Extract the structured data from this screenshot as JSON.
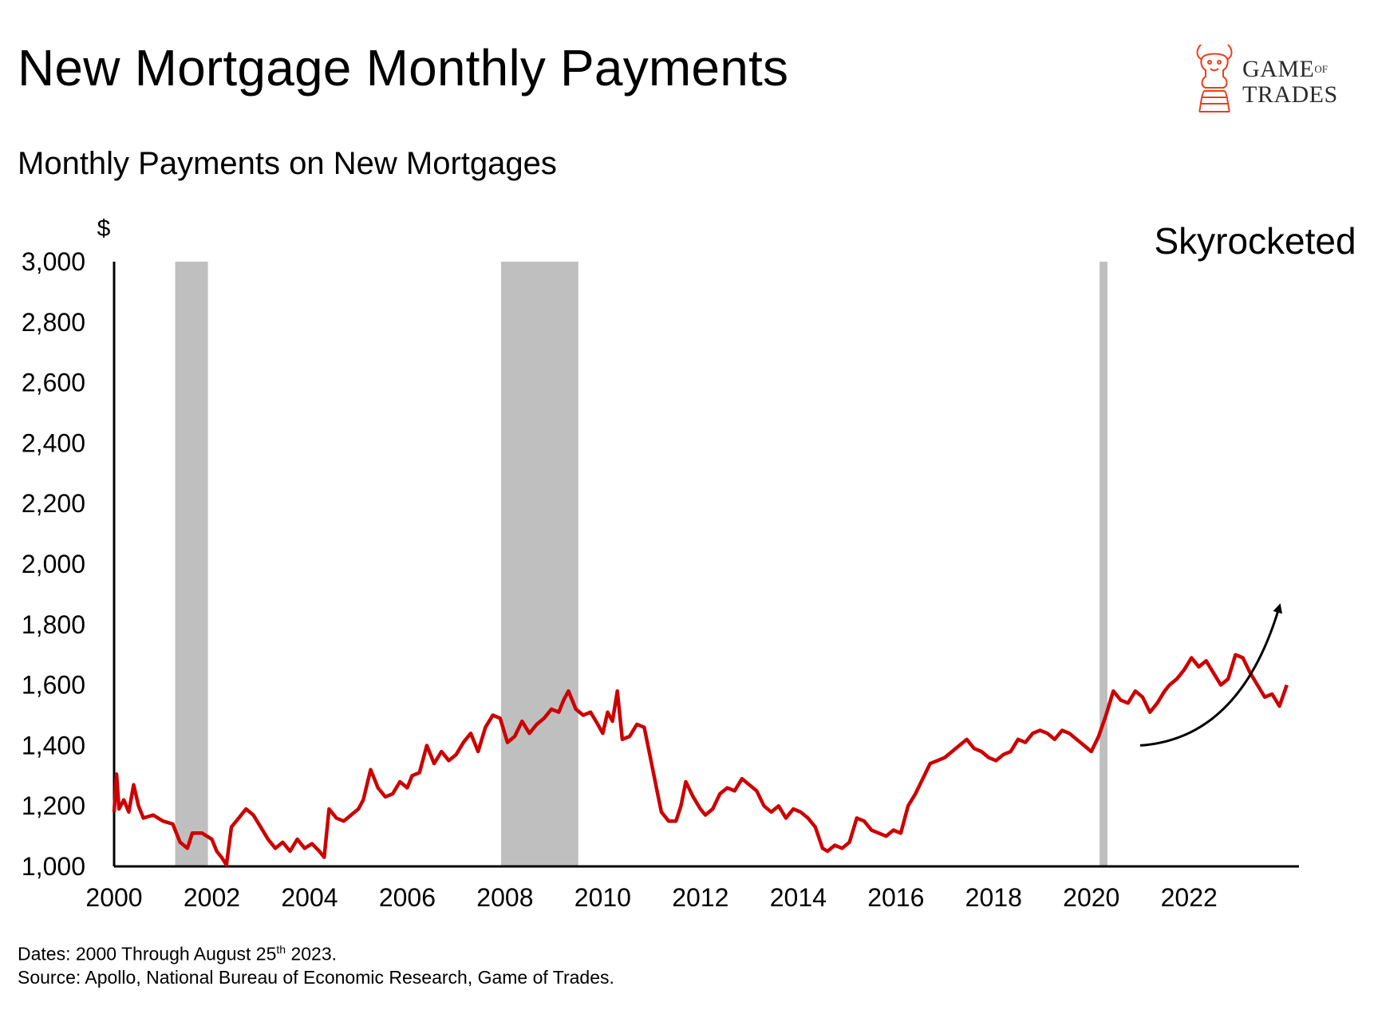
{
  "header": {
    "title": "New Mortgage Monthly Payments",
    "subtitle": "Monthly Payments on New Mortgages"
  },
  "logo": {
    "line1_main": "GAME",
    "line1_small": "OF",
    "line2": "TRADES",
    "icon": "chess-knight-bull-icon",
    "color": "#e8401c"
  },
  "footer": {
    "dates_prefix": "Dates: 2000 Through August 25",
    "dates_sup": "th",
    "dates_suffix": " 2023.",
    "source": "Source: Apollo, National Bureau of Economic Research, Game of Trades."
  },
  "chart_data": {
    "type": "line",
    "ylabel": "$",
    "xlim": [
      2000,
      2024.25
    ],
    "ylim": [
      1000,
      3000
    ],
    "yticks": [
      1000,
      1200,
      1400,
      1600,
      1800,
      2000,
      2200,
      2400,
      2600,
      2800,
      3000
    ],
    "ytick_labels": [
      "1,000",
      "1,200",
      "1,400",
      "1,600",
      "1,800",
      "2,000",
      "2,200",
      "2,400",
      "2,600",
      "2,800",
      "3,000"
    ],
    "xticks": [
      2000,
      2002,
      2004,
      2006,
      2008,
      2010,
      2012,
      2014,
      2016,
      2018,
      2020,
      2022
    ],
    "xtick_labels": [
      "2000",
      "2002",
      "2004",
      "2006",
      "2008",
      "2010",
      "2012",
      "2014",
      "2016",
      "2018",
      "2020",
      "2022"
    ],
    "grid": false,
    "line_color": "#cc0000",
    "recession_color": "#bfbfbf",
    "recessions": [
      [
        2001.25,
        2001.92
      ],
      [
        2007.92,
        2009.5
      ],
      [
        2020.17,
        2020.33
      ]
    ],
    "annotation": {
      "text": "Skyrocketed",
      "arrow_from": [
        2021.0,
        1400
      ],
      "arrow_to": [
        2023.85,
        1860
      ]
    },
    "series": [
      {
        "values": [
          [
            2000.0,
            1180
          ],
          [
            2000.05,
            1305
          ],
          [
            2000.1,
            1190
          ],
          [
            2000.2,
            1220
          ],
          [
            2000.3,
            1180
          ],
          [
            2000.4,
            1270
          ],
          [
            2000.5,
            1200
          ],
          [
            2000.6,
            1160
          ],
          [
            2000.8,
            1170
          ],
          [
            2001.0,
            1150
          ],
          [
            2001.2,
            1140
          ],
          [
            2001.35,
            1080
          ],
          [
            2001.5,
            1060
          ],
          [
            2001.6,
            1110
          ],
          [
            2001.8,
            1110
          ],
          [
            2002.0,
            1090
          ],
          [
            2002.1,
            1050
          ],
          [
            2002.2,
            1030
          ],
          [
            2002.3,
            1005
          ],
          [
            2002.4,
            1130
          ],
          [
            2002.55,
            1160
          ],
          [
            2002.7,
            1190
          ],
          [
            2002.85,
            1170
          ],
          [
            2003.0,
            1130
          ],
          [
            2003.15,
            1090
          ],
          [
            2003.3,
            1060
          ],
          [
            2003.45,
            1080
          ],
          [
            2003.6,
            1050
          ],
          [
            2003.75,
            1090
          ],
          [
            2003.9,
            1060
          ],
          [
            2004.05,
            1075
          ],
          [
            2004.2,
            1050
          ],
          [
            2004.3,
            1030
          ],
          [
            2004.4,
            1190
          ],
          [
            2004.55,
            1160
          ],
          [
            2004.7,
            1150
          ],
          [
            2004.85,
            1170
          ],
          [
            2005.0,
            1190
          ],
          [
            2005.1,
            1220
          ],
          [
            2005.25,
            1320
          ],
          [
            2005.4,
            1260
          ],
          [
            2005.55,
            1230
          ],
          [
            2005.7,
            1240
          ],
          [
            2005.85,
            1280
          ],
          [
            2006.0,
            1260
          ],
          [
            2006.1,
            1300
          ],
          [
            2006.25,
            1310
          ],
          [
            2006.4,
            1400
          ],
          [
            2006.55,
            1340
          ],
          [
            2006.7,
            1380
          ],
          [
            2006.85,
            1350
          ],
          [
            2007.0,
            1370
          ],
          [
            2007.15,
            1410
          ],
          [
            2007.3,
            1440
          ],
          [
            2007.45,
            1380
          ],
          [
            2007.6,
            1460
          ],
          [
            2007.75,
            1500
          ],
          [
            2007.9,
            1490
          ],
          [
            2008.05,
            1410
          ],
          [
            2008.2,
            1430
          ],
          [
            2008.35,
            1480
          ],
          [
            2008.5,
            1440
          ],
          [
            2008.65,
            1470
          ],
          [
            2008.8,
            1490
          ],
          [
            2008.95,
            1520
          ],
          [
            2009.1,
            1510
          ],
          [
            2009.2,
            1550
          ],
          [
            2009.3,
            1580
          ],
          [
            2009.45,
            1520
          ],
          [
            2009.6,
            1500
          ],
          [
            2009.75,
            1510
          ],
          [
            2009.9,
            1470
          ],
          [
            2010.0,
            1440
          ],
          [
            2010.1,
            1510
          ],
          [
            2010.2,
            1480
          ],
          [
            2010.3,
            1580
          ],
          [
            2010.4,
            1420
          ],
          [
            2010.55,
            1430
          ],
          [
            2010.7,
            1470
          ],
          [
            2010.85,
            1460
          ],
          [
            2011.0,
            1340
          ],
          [
            2011.1,
            1260
          ],
          [
            2011.2,
            1180
          ],
          [
            2011.35,
            1150
          ],
          [
            2011.5,
            1150
          ],
          [
            2011.6,
            1200
          ],
          [
            2011.7,
            1280
          ],
          [
            2011.85,
            1230
          ],
          [
            2012.0,
            1190
          ],
          [
            2012.1,
            1170
          ],
          [
            2012.25,
            1190
          ],
          [
            2012.4,
            1240
          ],
          [
            2012.55,
            1260
          ],
          [
            2012.7,
            1250
          ],
          [
            2012.85,
            1290
          ],
          [
            2013.0,
            1270
          ],
          [
            2013.15,
            1250
          ],
          [
            2013.3,
            1200
          ],
          [
            2013.45,
            1180
          ],
          [
            2013.6,
            1200
          ],
          [
            2013.75,
            1160
          ],
          [
            2013.9,
            1190
          ],
          [
            2014.05,
            1180
          ],
          [
            2014.2,
            1160
          ],
          [
            2014.35,
            1130
          ],
          [
            2014.5,
            1060
          ],
          [
            2014.6,
            1050
          ],
          [
            2014.75,
            1070
          ],
          [
            2014.9,
            1060
          ],
          [
            2015.05,
            1080
          ],
          [
            2015.2,
            1160
          ],
          [
            2015.35,
            1150
          ],
          [
            2015.5,
            1120
          ],
          [
            2015.65,
            1110
          ],
          [
            2015.8,
            1100
          ],
          [
            2015.95,
            1120
          ],
          [
            2016.1,
            1110
          ],
          [
            2016.25,
            1200
          ],
          [
            2016.4,
            1240
          ],
          [
            2016.55,
            1290
          ],
          [
            2016.7,
            1340
          ],
          [
            2016.85,
            1350
          ],
          [
            2017.0,
            1360
          ],
          [
            2017.15,
            1380
          ],
          [
            2017.3,
            1400
          ],
          [
            2017.45,
            1420
          ],
          [
            2017.6,
            1390
          ],
          [
            2017.75,
            1380
          ],
          [
            2017.9,
            1360
          ],
          [
            2018.05,
            1350
          ],
          [
            2018.2,
            1370
          ],
          [
            2018.35,
            1380
          ],
          [
            2018.5,
            1420
          ],
          [
            2018.65,
            1410
          ],
          [
            2018.8,
            1440
          ],
          [
            2018.95,
            1450
          ],
          [
            2019.1,
            1440
          ],
          [
            2019.25,
            1420
          ],
          [
            2019.4,
            1450
          ],
          [
            2019.55,
            1440
          ],
          [
            2019.7,
            1420
          ],
          [
            2019.85,
            1400
          ],
          [
            2020.0,
            1380
          ],
          [
            2020.15,
            1430
          ],
          [
            2020.3,
            1500
          ],
          [
            2020.45,
            1580
          ],
          [
            2020.6,
            1550
          ],
          [
            2020.75,
            1540
          ],
          [
            2020.9,
            1580
          ],
          [
            2021.05,
            1560
          ],
          [
            2021.2,
            1510
          ],
          [
            2021.35,
            1540
          ],
          [
            2021.5,
            1580
          ],
          [
            2021.6,
            1600
          ],
          [
            2021.75,
            1620
          ],
          [
            2021.9,
            1650
          ],
          [
            2022.05,
            1690
          ],
          [
            2022.2,
            1660
          ],
          [
            2022.35,
            1680
          ],
          [
            2022.5,
            1640
          ],
          [
            2022.65,
            1600
          ],
          [
            2022.8,
            1620
          ],
          [
            2022.95,
            1700
          ],
          [
            2023.1,
            1690
          ],
          [
            2023.25,
            1640
          ],
          [
            2023.4,
            1600
          ],
          [
            2023.55,
            1560
          ],
          [
            2023.7,
            1570
          ],
          [
            2023.85,
            1530
          ],
          [
            2024.0,
            1600
          ]
        ]
      }
    ]
  }
}
